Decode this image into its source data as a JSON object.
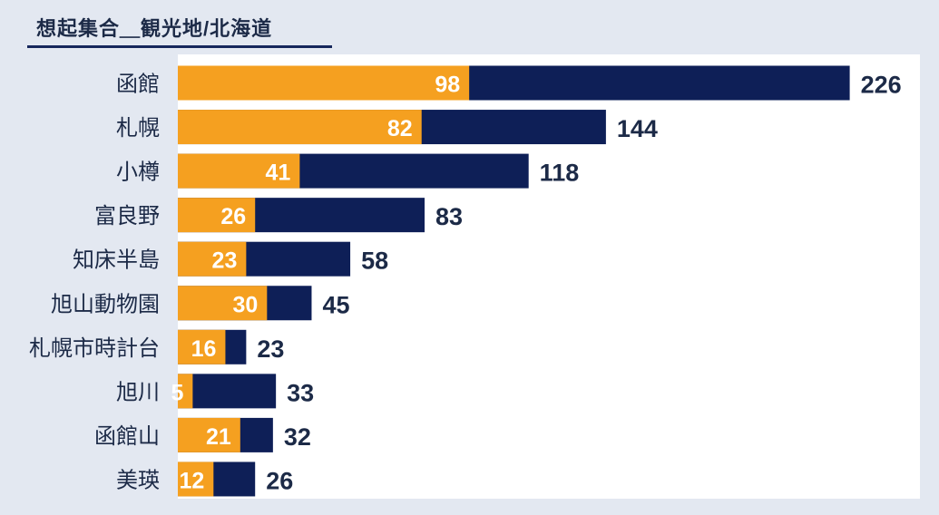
{
  "chart_data": {
    "type": "bar",
    "orientation": "horizontal",
    "stacking": "overlay",
    "title": "想起集合＿観光地/北海道",
    "categories": [
      "函館",
      "札幌",
      "小樽",
      "富良野",
      "知床半島",
      "旭山動物園",
      "札幌市時計台",
      "旭川",
      "函館山",
      "美瑛"
    ],
    "series": [
      {
        "values": [
          226,
          144,
          118,
          83,
          58,
          45,
          23,
          33,
          32,
          26
        ],
        "color": "#0e1f57"
      },
      {
        "values": [
          98,
          82,
          41,
          26,
          23,
          30,
          16,
          5,
          21,
          12
        ],
        "color": "#f5a020"
      }
    ],
    "xlim": [
      0,
      250
    ],
    "grid": false,
    "legend": "none"
  }
}
